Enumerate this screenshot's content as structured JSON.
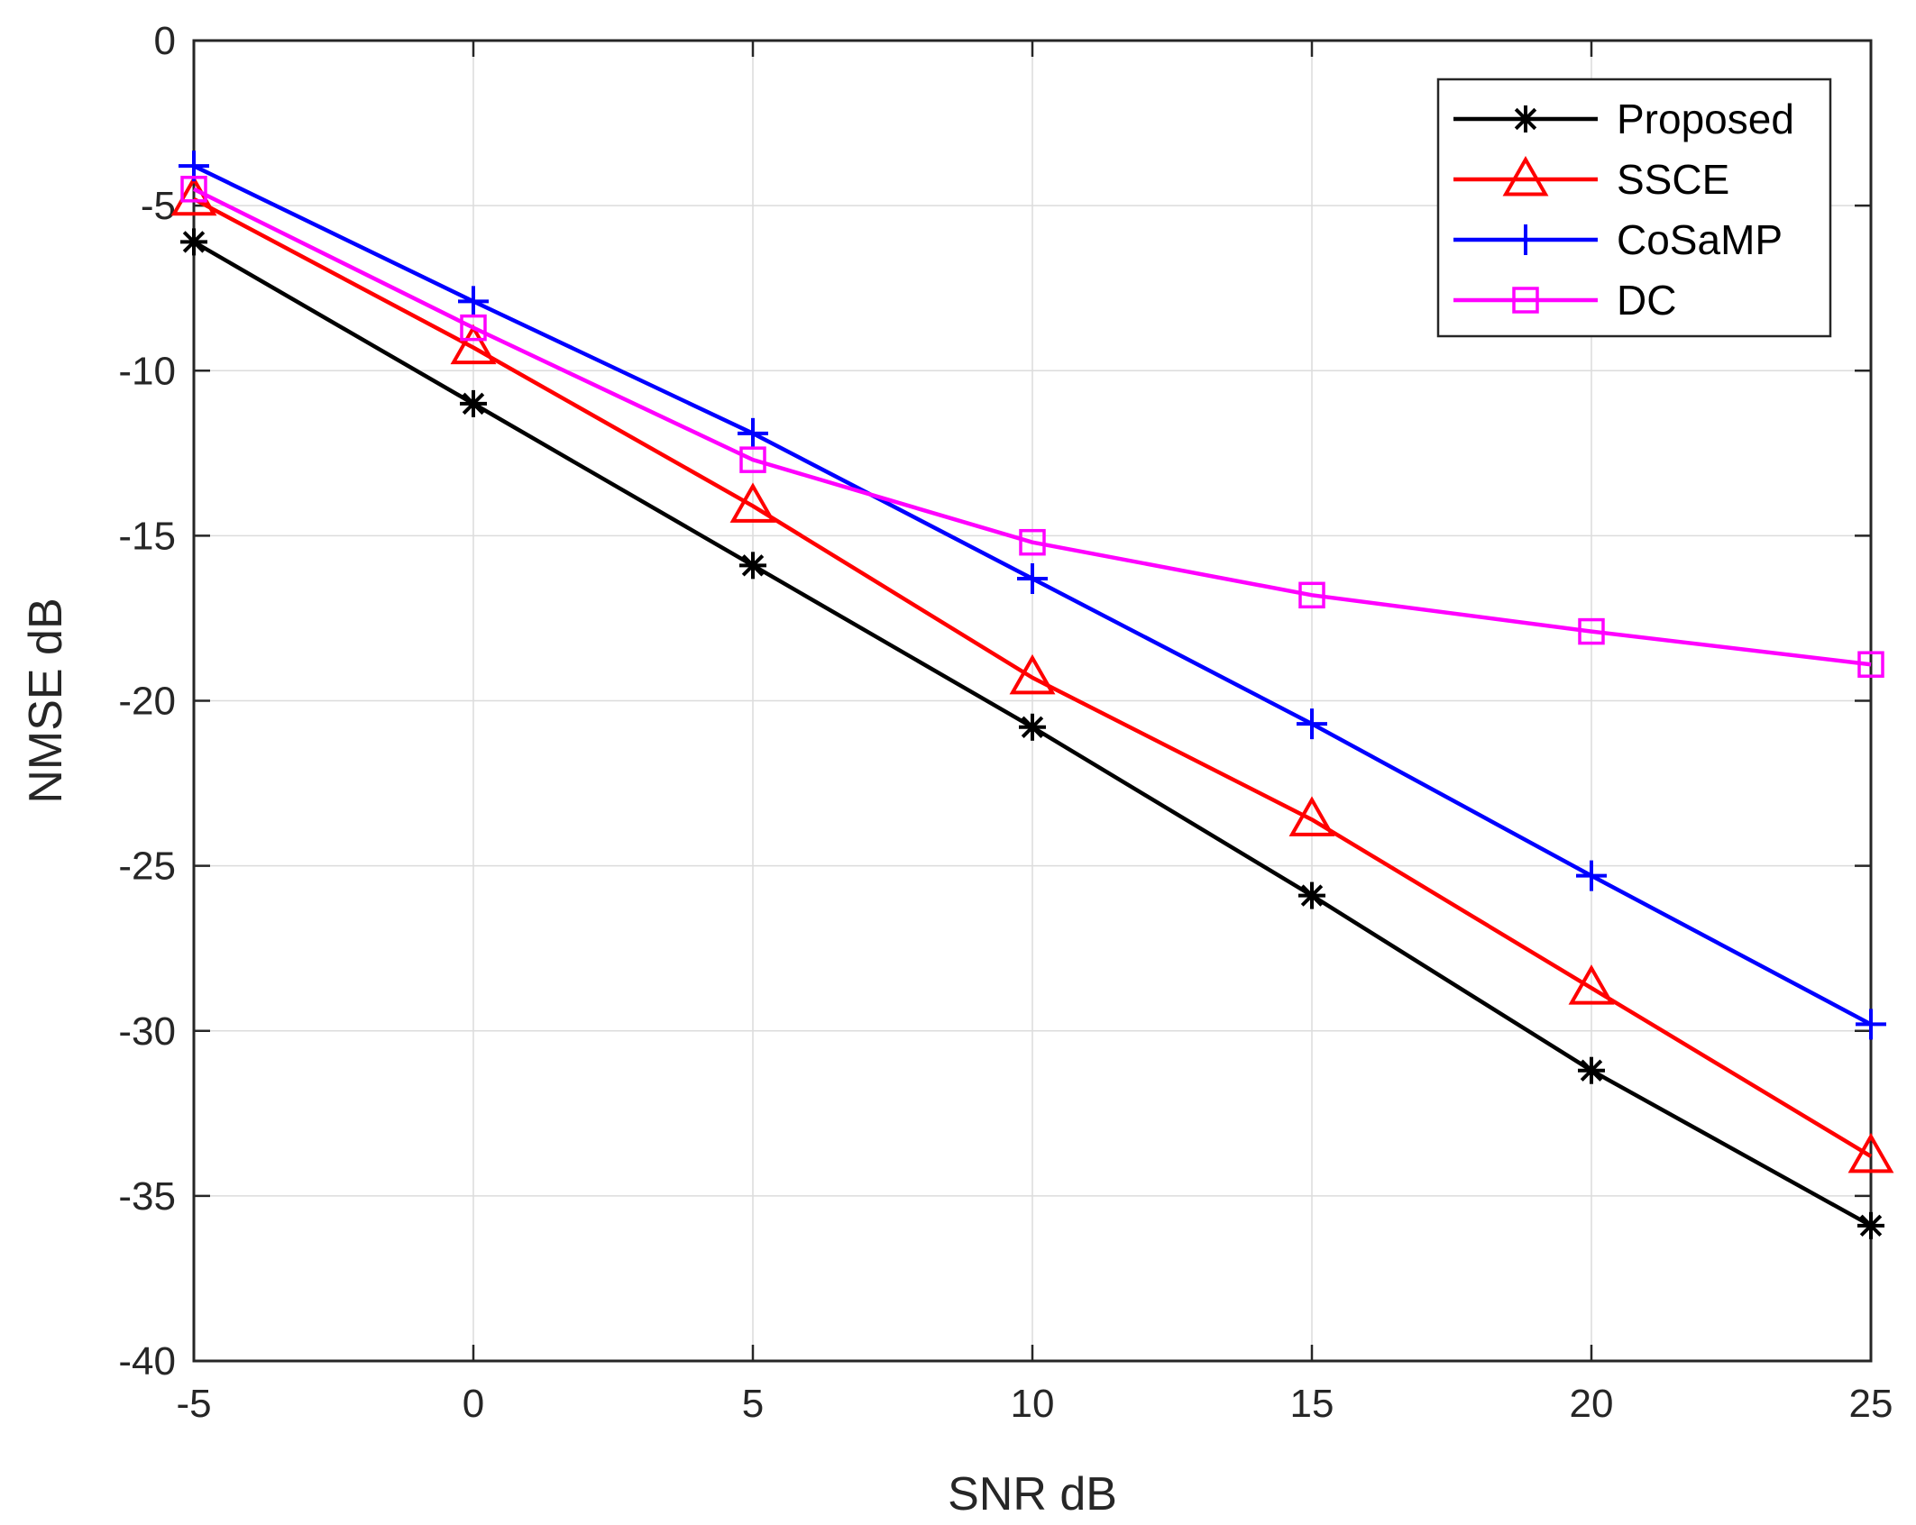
{
  "chart_data": {
    "type": "line",
    "xlabel": "SNR dB",
    "ylabel": "NMSE dB",
    "x": [
      -5,
      0,
      5,
      10,
      15,
      20,
      25
    ],
    "xlim": [
      -5,
      25
    ],
    "ylim": [
      -40,
      0
    ],
    "xticks": [
      -5,
      0,
      5,
      10,
      15,
      20,
      25
    ],
    "yticks": [
      0,
      -5,
      -10,
      -15,
      -20,
      -25,
      -30,
      -35,
      -40
    ],
    "grid": true,
    "legend_position": "top-right",
    "series": [
      {
        "name": "Proposed",
        "color": "#000000",
        "marker": "asterisk",
        "values": [
          -6.1,
          -11.0,
          -15.9,
          -20.8,
          -25.9,
          -31.2,
          -35.9
        ]
      },
      {
        "name": "SSCE",
        "color": "#ff0000",
        "marker": "triangle",
        "values": [
          -4.8,
          -9.3,
          -14.1,
          -19.3,
          -23.6,
          -28.7,
          -33.8
        ]
      },
      {
        "name": "CoSaMP",
        "color": "#0000ff",
        "marker": "plus",
        "values": [
          -3.8,
          -7.9,
          -11.9,
          -16.3,
          -20.7,
          -25.3,
          -29.8
        ]
      },
      {
        "name": "DC",
        "color": "#ff00ff",
        "marker": "square",
        "values": [
          -4.5,
          -8.7,
          -12.7,
          -15.2,
          -16.8,
          -17.9,
          -18.9
        ]
      }
    ]
  }
}
